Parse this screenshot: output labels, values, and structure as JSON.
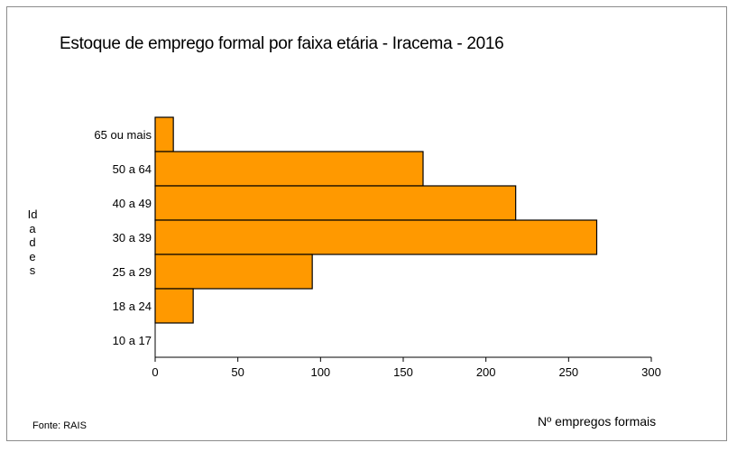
{
  "chart_data": {
    "type": "bar",
    "orientation": "horizontal",
    "title": "Estoque  de emprego formal por faixa etária - Iracema - 2016",
    "ylabel": "Idades",
    "xlabel": "Nº empregos formais",
    "source": "Fonte: RAIS",
    "categories": [
      "65 ou mais",
      "50 a 64",
      "40 a 49",
      "30 a 39",
      "25 a 29",
      "18 a 24",
      "10 a 17"
    ],
    "values": [
      11,
      162,
      218,
      267,
      95,
      23,
      0
    ],
    "xlim": [
      0,
      300
    ],
    "xticks": [
      0,
      50,
      100,
      150,
      200,
      250,
      300
    ],
    "bar_color": "#ff9900",
    "grid": false
  }
}
